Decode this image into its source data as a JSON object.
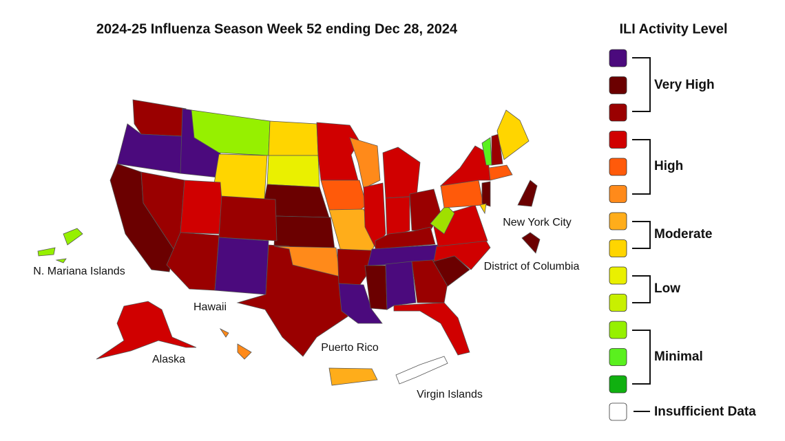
{
  "title": "2024-25 Influenza Season Week 52 ending Dec 28, 2024",
  "legend": {
    "title": "ILI Activity Level",
    "swatches": [
      "#4b0a7d",
      "#6b0000",
      "#9a0000",
      "#d00000",
      "#ff5a0a",
      "#ff8a1a",
      "#ffad1a",
      "#ffd500",
      "#eaf000",
      "#c8f000",
      "#96f000",
      "#5af01e",
      "#10b010"
    ],
    "groups": [
      "Very High",
      "High",
      "Moderate",
      "Low",
      "Minimal"
    ],
    "insufficient": {
      "color": "#ffffff",
      "label": "Insufficient Data"
    }
  },
  "labels": {
    "mariana": "N. Mariana Islands",
    "hawaii": "Hawaii",
    "alaska": "Alaska",
    "puerto_rico": "Puerto Rico",
    "virgin_islands": "Virgin Islands",
    "nyc": "New York City",
    "dc": "District of Columbia"
  }
}
